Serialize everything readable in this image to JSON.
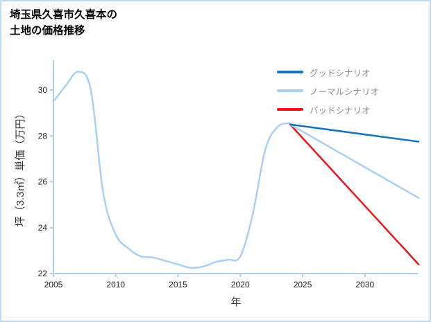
{
  "page": {
    "border_color": "#b9d9f5",
    "background": "#ffffff"
  },
  "title": {
    "line1": "埼玉県久喜市久喜本の",
    "line2": "土地の価格推移"
  },
  "chart_data": {
    "type": "line",
    "title": "埼玉県久喜市久喜本の土地の価格推移",
    "xlabel": "年",
    "ylabel": "坪（3.3㎡）単価（万円）",
    "xlim": [
      2005,
      2034.3
    ],
    "ylim": [
      22,
      31.3
    ],
    "xticks": [
      2005,
      2010,
      2015,
      2020,
      2025,
      2030
    ],
    "yticks": [
      22,
      24,
      26,
      28,
      30
    ],
    "grid": false,
    "legend_position": "top-right",
    "axis_color": "#a9cff2",
    "tick_label_color": "#262626",
    "history": {
      "color": "#a9cff2",
      "x": [
        2005,
        2006,
        2007,
        2008,
        2009,
        2010,
        2011,
        2012,
        2013,
        2014,
        2015,
        2016,
        2017,
        2018,
        2019,
        2020,
        2021,
        2022,
        2023,
        2024
      ],
      "values": [
        29.5,
        30.2,
        30.8,
        30.0,
        25.5,
        23.7,
        23.1,
        22.75,
        22.7,
        22.55,
        22.4,
        22.25,
        22.3,
        22.5,
        22.6,
        22.75,
        24.6,
        27.4,
        28.4,
        28.55
      ]
    },
    "series": [
      {
        "name": "グッドシナリオ",
        "color": "#1273c2",
        "x": [
          2024,
          2034.3
        ],
        "values": [
          28.5,
          27.75
        ]
      },
      {
        "name": "ノーマルシナリオ",
        "color": "#a9cff2",
        "x": [
          2024,
          2034.3
        ],
        "values": [
          28.5,
          25.3
        ]
      },
      {
        "name": "バッドシナリオ",
        "color": "#f01418",
        "x": [
          2024,
          2034.3
        ],
        "values": [
          28.5,
          22.4
        ]
      }
    ]
  }
}
